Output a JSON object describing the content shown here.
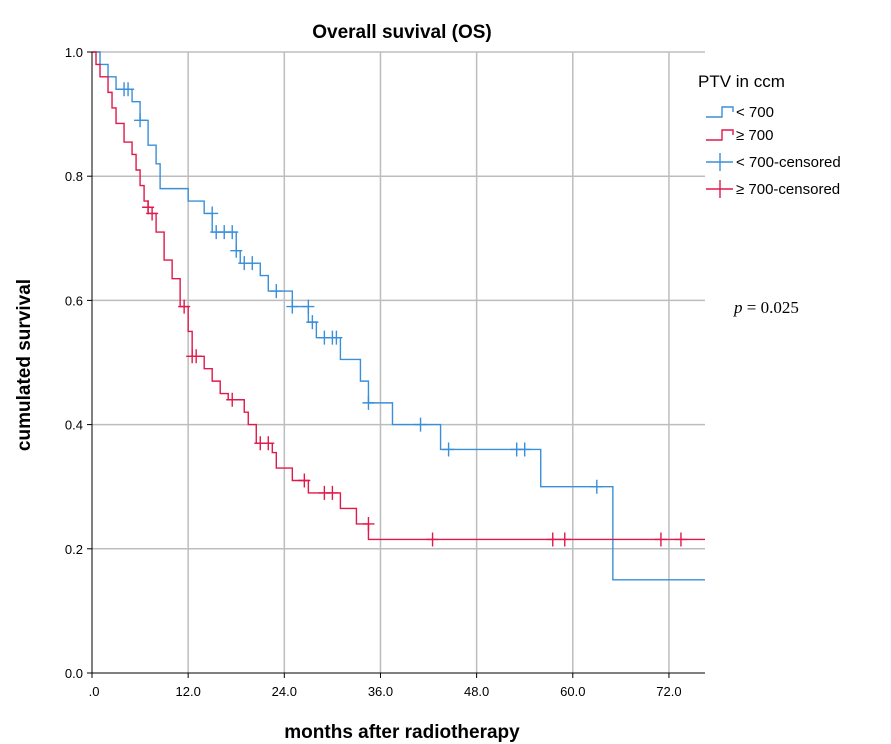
{
  "chart_data": {
    "type": "line",
    "title": "Overall suvival (OS)",
    "xlabel": "months after radiotherapy",
    "ylabel": "cumulated survival",
    "xlim": [
      0,
      76.5
    ],
    "ylim": [
      0,
      1.0
    ],
    "xticks": [
      0,
      12,
      24,
      36,
      48,
      60,
      72
    ],
    "xtick_labels": [
      ".0",
      "12.0",
      "24.0",
      "36.0",
      "48.0",
      "60.0",
      "72.0"
    ],
    "yticks": [
      0,
      0.2,
      0.4,
      0.6,
      0.8,
      1.0
    ],
    "ytick_labels": [
      "0.0",
      "0.2",
      "0.4",
      "0.6",
      "0.8",
      "1.0"
    ],
    "grid": true,
    "legend": {
      "title": "PTV in ccm",
      "placement": "right",
      "entries": [
        "< 700",
        "≥ 700",
        "< 700-censored",
        "≥ 700-censored"
      ]
    },
    "annotation": {
      "prefix": "p",
      "text": " = 0.025"
    },
    "series": [
      {
        "name": "< 700",
        "color": "#3a8fd9",
        "steps": [
          [
            0,
            1.0
          ],
          [
            1,
            0.98
          ],
          [
            2,
            0.96
          ],
          [
            3,
            0.94
          ],
          [
            5,
            0.92
          ],
          [
            6,
            0.89
          ],
          [
            7,
            0.85
          ],
          [
            8,
            0.82
          ],
          [
            8.5,
            0.78
          ],
          [
            12,
            0.76
          ],
          [
            14,
            0.74
          ],
          [
            15,
            0.71
          ],
          [
            18,
            0.68
          ],
          [
            18.5,
            0.66
          ],
          [
            21,
            0.64
          ],
          [
            22,
            0.615
          ],
          [
            25,
            0.59
          ],
          [
            27,
            0.565
          ],
          [
            28,
            0.54
          ],
          [
            31,
            0.505
          ],
          [
            33.5,
            0.47
          ],
          [
            34.5,
            0.435
          ],
          [
            37.5,
            0.4
          ],
          [
            43.5,
            0.36
          ],
          [
            56,
            0.3
          ],
          [
            65,
            0.15
          ],
          [
            76.5,
            0.15
          ]
        ],
        "censored": [
          [
            4,
            0.94
          ],
          [
            4.5,
            0.94
          ],
          [
            6,
            0.89
          ],
          [
            15,
            0.74
          ],
          [
            15.5,
            0.71
          ],
          [
            16.5,
            0.71
          ],
          [
            17.5,
            0.71
          ],
          [
            18,
            0.68
          ],
          [
            19,
            0.66
          ],
          [
            20,
            0.66
          ],
          [
            23,
            0.615
          ],
          [
            25,
            0.59
          ],
          [
            27,
            0.59
          ],
          [
            27.5,
            0.565
          ],
          [
            29,
            0.54
          ],
          [
            30,
            0.54
          ],
          [
            30.5,
            0.54
          ],
          [
            34.5,
            0.435
          ],
          [
            41,
            0.4
          ],
          [
            44.5,
            0.36
          ],
          [
            53,
            0.36
          ],
          [
            54,
            0.36
          ],
          [
            63,
            0.3
          ]
        ]
      },
      {
        "name": "≥ 700",
        "color": "#e0194a",
        "steps": [
          [
            0,
            1.0
          ],
          [
            0.5,
            0.98
          ],
          [
            1,
            0.96
          ],
          [
            2,
            0.935
          ],
          [
            2.5,
            0.91
          ],
          [
            3,
            0.885
          ],
          [
            4,
            0.855
          ],
          [
            5,
            0.835
          ],
          [
            5.5,
            0.81
          ],
          [
            6,
            0.785
          ],
          [
            6.5,
            0.76
          ],
          [
            7,
            0.74
          ],
          [
            8,
            0.71
          ],
          [
            9,
            0.665
          ],
          [
            10,
            0.635
          ],
          [
            11,
            0.59
          ],
          [
            12,
            0.55
          ],
          [
            12.5,
            0.51
          ],
          [
            14,
            0.49
          ],
          [
            15,
            0.47
          ],
          [
            16,
            0.45
          ],
          [
            17,
            0.44
          ],
          [
            19,
            0.42
          ],
          [
            19.5,
            0.4
          ],
          [
            20.5,
            0.37
          ],
          [
            22.5,
            0.355
          ],
          [
            23,
            0.33
          ],
          [
            25,
            0.31
          ],
          [
            27,
            0.29
          ],
          [
            31,
            0.265
          ],
          [
            33,
            0.24
          ],
          [
            34.5,
            0.215
          ],
          [
            76.5,
            0.215
          ]
        ],
        "censored": [
          [
            7,
            0.75
          ],
          [
            7.5,
            0.74
          ],
          [
            11.5,
            0.59
          ],
          [
            12.5,
            0.51
          ],
          [
            13,
            0.51
          ],
          [
            17.5,
            0.44
          ],
          [
            21,
            0.37
          ],
          [
            22,
            0.37
          ],
          [
            26.5,
            0.31
          ],
          [
            29,
            0.29
          ],
          [
            30,
            0.29
          ],
          [
            34.5,
            0.24
          ],
          [
            42.5,
            0.215
          ],
          [
            57.5,
            0.215
          ],
          [
            59,
            0.215
          ],
          [
            71,
            0.215
          ],
          [
            73.5,
            0.215
          ]
        ]
      }
    ]
  }
}
